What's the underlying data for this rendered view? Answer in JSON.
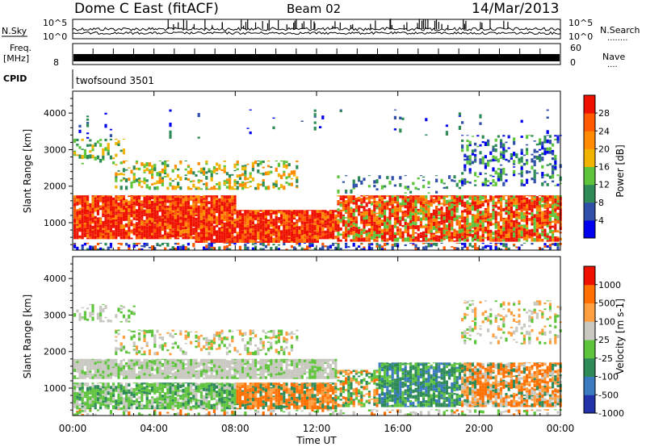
{
  "header": {
    "station": "Dome C East (fitACF)",
    "beam": "Beam 02",
    "date": "14/Mar/2013"
  },
  "noise_panel": {
    "left_label": "N.Sky",
    "left_ticks": [
      "10^5",
      "10^0"
    ],
    "right_ticks": [
      "10^5",
      "10^0"
    ],
    "right_label": "N.Search",
    "right_dots": "........"
  },
  "freq_panel": {
    "left_label_1": "Freq.",
    "left_label_2": "[MHz]",
    "left_tick": "8",
    "right_ticks": [
      "60",
      "0"
    ],
    "right_label": "Nave",
    "right_dots": "...."
  },
  "cpid": {
    "label": "CPID",
    "value": "twofsound 3501"
  },
  "x_axis": {
    "ticks": [
      "00:00",
      "04:00",
      "08:00",
      "12:00",
      "16:00",
      "20:00",
      "00:00"
    ],
    "label": "Time UT"
  },
  "colors": {
    "power_scale": [
      "#0000ee",
      "#2f4fa8",
      "#2e8b57",
      "#5ec43c",
      "#f0b400",
      "#ff8c00",
      "#ff5a00",
      "#ee1100"
    ],
    "velocity_scale": [
      "#2233aa",
      "#3a7abf",
      "#2e8b57",
      "#5ec43c",
      "#c8c8c0",
      "#ffa040",
      "#ff7000",
      "#ee1100"
    ]
  },
  "chart_data": [
    {
      "type": "heatmap",
      "panel": "power",
      "ylabel": "Slant Range [km]",
      "xlabel": "",
      "yticks": [
        "1000",
        "2000",
        "3000",
        "4000"
      ],
      "ylim": [
        250,
        4600
      ],
      "xlim_hours": [
        0,
        24
      ],
      "colorbar": {
        "label": "Power [dB]",
        "ticks": [
          "4",
          "8",
          "12",
          "16",
          "20",
          "24",
          "28"
        ],
        "range": [
          0,
          32
        ]
      },
      "dominant_bands": [
        {
          "t0": 0,
          "t1": 13,
          "r0": 500,
          "r1": 1700,
          "level": "high (24-32 dB)"
        },
        {
          "t0": 13,
          "t1": 24,
          "r0": 500,
          "r1": 1700,
          "level": "high (24-32 dB)"
        },
        {
          "t0": 2,
          "t1": 11,
          "r0": 1900,
          "r1": 2800,
          "level": "medium (12-20 dB)"
        },
        {
          "t0": 19,
          "t1": 24,
          "r0": 2000,
          "r1": 3400,
          "level": "low-medium (4-16 dB)"
        }
      ]
    },
    {
      "type": "heatmap",
      "panel": "velocity",
      "ylabel": "Slant Range [km]",
      "xlabel": "Time UT",
      "yticks": [
        "1000",
        "2000",
        "3000",
        "4000"
      ],
      "ylim": [
        250,
        4600
      ],
      "xlim_hours": [
        0,
        24
      ],
      "colorbar": {
        "label": "Velocity [m s-1]",
        "ticks": [
          "1000",
          "500",
          "100",
          "25",
          "-25",
          "-100",
          "-500",
          "-1000"
        ],
        "range": [
          -1000,
          1000
        ]
      },
      "dominant_bands": [
        {
          "t0": 0,
          "t1": 8,
          "r0": 400,
          "r1": 1100,
          "level": "green (25-500)"
        },
        {
          "t0": 8,
          "t1": 12,
          "r0": 400,
          "r1": 1100,
          "level": "orange (-100 to -500)"
        },
        {
          "t0": 0,
          "t1": 13,
          "r0": 1300,
          "r1": 1800,
          "level": "grey (-25 to 25)"
        },
        {
          "t0": 15,
          "t1": 19,
          "r0": 500,
          "r1": 1700,
          "level": "green (100-500)"
        },
        {
          "t0": 19,
          "t1": 23,
          "r0": 500,
          "r1": 1700,
          "level": "orange (-100 to -500)"
        }
      ]
    }
  ]
}
